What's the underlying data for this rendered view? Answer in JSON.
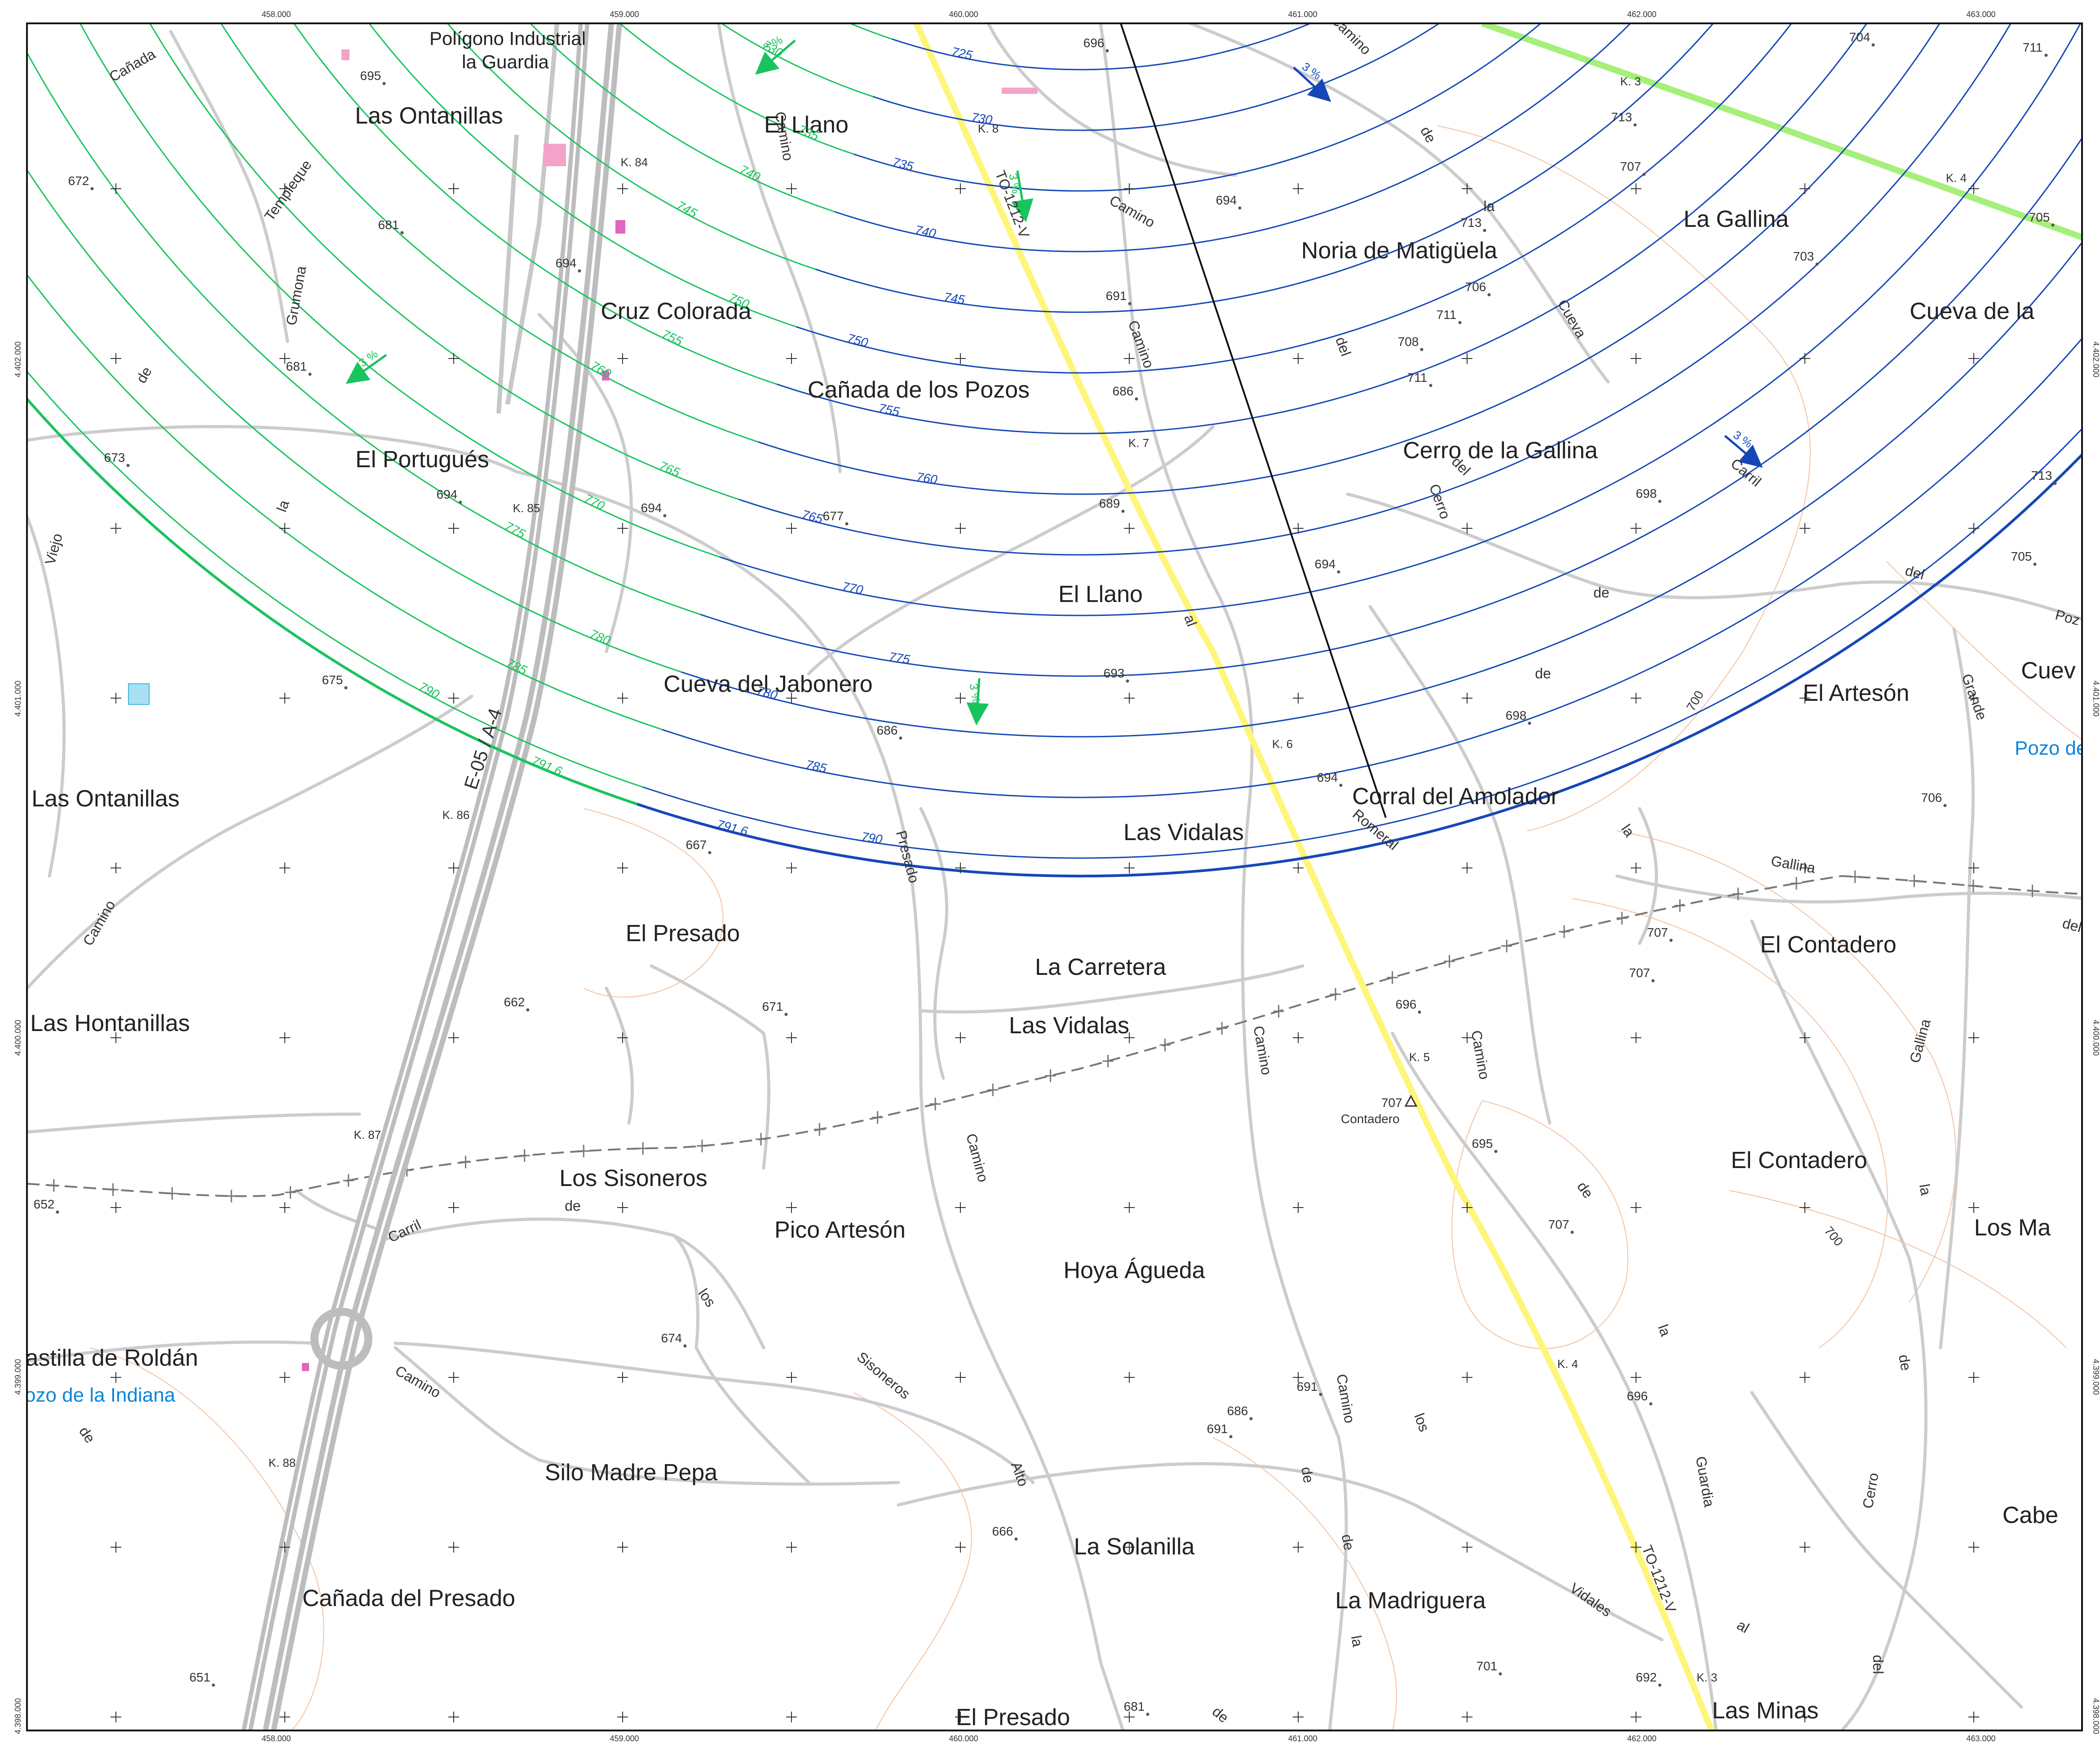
{
  "map": {
    "easting_labels": [
      "458.000",
      "459.000",
      "460.000",
      "461.000",
      "462.000",
      "463.000"
    ],
    "northing_labels": [
      "4.402.000",
      "4.401.000",
      "4.400.000",
      "4.399.000",
      "4.398.000"
    ],
    "colors": {
      "surface_green": "#19c45c",
      "surface_blue": "#1547b8",
      "roads": "#c8c8c8",
      "highway": "#bdbdbd",
      "road_yellow": "#fff57a",
      "terrain_contour": "#f0a878",
      "railway": "#777777",
      "highlight_green": "#a6ef7a"
    },
    "place_names": [
      "Polígono Industrial",
      "la Guardia",
      "Las Ontanillas",
      "El Llano",
      "Noria de Matigüela",
      "La Gallina",
      "Cruz Colorada",
      "Cañada de los Pozos",
      "Cueva de la",
      "El Portugués",
      "Cerro de la Gallina",
      "El Llano",
      "Cueva del Jabonero",
      "El Artesón",
      "Cuev",
      "Las Ontanillas",
      "Corral del Amolador",
      "Las Vidalas",
      "El Presado",
      "La Carretera",
      "El Contadero",
      "Las Hontanillas",
      "Las Vidalas",
      "El Contadero",
      "Los Sisoneros",
      "Pico Artesón",
      "Hoya Águeda",
      "Los Ma",
      "Castilla de Roldán",
      "Silo Madre Pepa",
      "La Solanilla",
      "Cabe",
      "Cañada del Presado",
      "La Madriguera",
      "El Presado",
      "Las Minas",
      "Contadero"
    ],
    "water_names": [
      "Pozo de",
      "ozo de la Indiana"
    ],
    "spot_heights": [
      "696",
      "695",
      "704",
      "711",
      "672",
      "713",
      "707",
      "705",
      "681",
      "694",
      "694",
      "713",
      "703",
      "706",
      "711",
      "691",
      "708",
      "711",
      "681",
      "686",
      "673",
      "694",
      "694",
      "677",
      "689",
      "698",
      "713",
      "705",
      "694",
      "675",
      "693",
      "698",
      "686",
      "694",
      "706",
      "667",
      "707",
      "662",
      "671",
      "696",
      "707",
      "652",
      "695",
      "707",
      "674",
      "686",
      "691",
      "691",
      "696",
      "666",
      "701",
      "692",
      "651",
      "681"
    ],
    "km_markers": [
      "K. 84",
      "K. 8",
      "K. 3",
      "K. 4",
      "K. 85",
      "K. 7",
      "K. 86",
      "K. 6",
      "K. 87",
      "K. 5",
      "K. 88",
      "K. 4",
      "K. 3"
    ],
    "road_names": [
      "Cañada",
      "Templeque",
      "Grumona",
      "de",
      "la",
      "Viejo",
      "Camino",
      "Camino",
      "Camino",
      "de",
      "la",
      "Cueva",
      "del",
      "Cerro",
      "de",
      "la",
      "Carril",
      "del",
      "Poz",
      "Grande",
      "Gallina",
      "Gallina",
      "del",
      "Camino",
      "Presado",
      "Camino",
      "al",
      "Romeral",
      "Camino",
      "Camino",
      "de",
      "Carril",
      "de",
      "los",
      "Sisoneros",
      "Camino",
      "de",
      "Alto",
      "Camino",
      "de",
      "los",
      "de",
      "la",
      "Guardia",
      "Vidales",
      "al",
      "Cerro",
      "de",
      "la",
      "del",
      "de",
      "la",
      "del",
      "Camino",
      "de"
    ],
    "road_codes": [
      "TO-1212-V",
      "TO-1212-V"
    ],
    "highway_label": "E-05 / A-4",
    "contour_levels": [
      "720",
      "725",
      "730",
      "735",
      "740",
      "745",
      "750",
      "755",
      "760",
      "765",
      "770",
      "775",
      "780",
      "785",
      "790",
      "791.6"
    ],
    "terrain_contour_level": "700",
    "slope_label": "3 %",
    "trig_point": {
      "label": "707",
      "name": "Contadero"
    }
  }
}
